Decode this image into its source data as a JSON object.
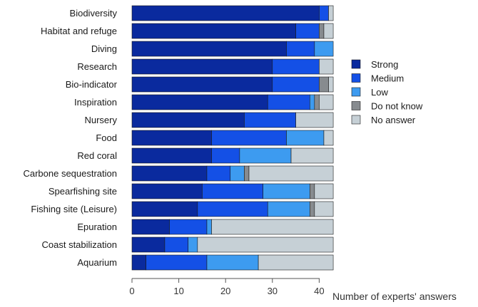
{
  "chart_data": {
    "type": "bar",
    "orientation": "horizontal",
    "stacked": true,
    "title": "",
    "xlabel": "Number of experts' answers",
    "ylabel": "",
    "xlim": [
      0,
      43
    ],
    "xticks": [
      0,
      10,
      20,
      30,
      40
    ],
    "grid": false,
    "legend_position": "right",
    "categories": [
      "Biodiversity",
      "Habitat and refuge",
      "Diving",
      "Research",
      "Bio-indicator",
      "Inspiration",
      "Nursery",
      "Food",
      "Red coral",
      "Carbone sequestration",
      "Spearfishing site",
      "Fishing site (Leisure)",
      "Epuration",
      "Coast stabilization",
      "Aquarium"
    ],
    "series": [
      {
        "name": "Strong",
        "color": "#0a2a9e",
        "values": [
          40,
          35,
          33,
          30,
          30,
          29,
          24,
          17,
          17,
          16,
          15,
          14,
          8,
          7,
          3
        ]
      },
      {
        "name": "Medium",
        "color": "#1450e6",
        "values": [
          2,
          5,
          6,
          10,
          10,
          9,
          11,
          16,
          6,
          5,
          13,
          15,
          8,
          5,
          13
        ]
      },
      {
        "name": "Low",
        "color": "#3d9bf0",
        "values": [
          0,
          0,
          4,
          0,
          0,
          1,
          0,
          8,
          11,
          3,
          10,
          9,
          1,
          2,
          11
        ]
      },
      {
        "name": "Do not know",
        "color": "#878b8f",
        "values": [
          0,
          1,
          0,
          0,
          2,
          1,
          0,
          0,
          0,
          1,
          1,
          1,
          0,
          0,
          0
        ]
      },
      {
        "name": "No answer",
        "color": "#c6d0d6",
        "values": [
          1,
          2,
          0,
          3,
          1,
          3,
          8,
          2,
          9,
          18,
          4,
          4,
          26,
          29,
          16
        ]
      }
    ]
  }
}
